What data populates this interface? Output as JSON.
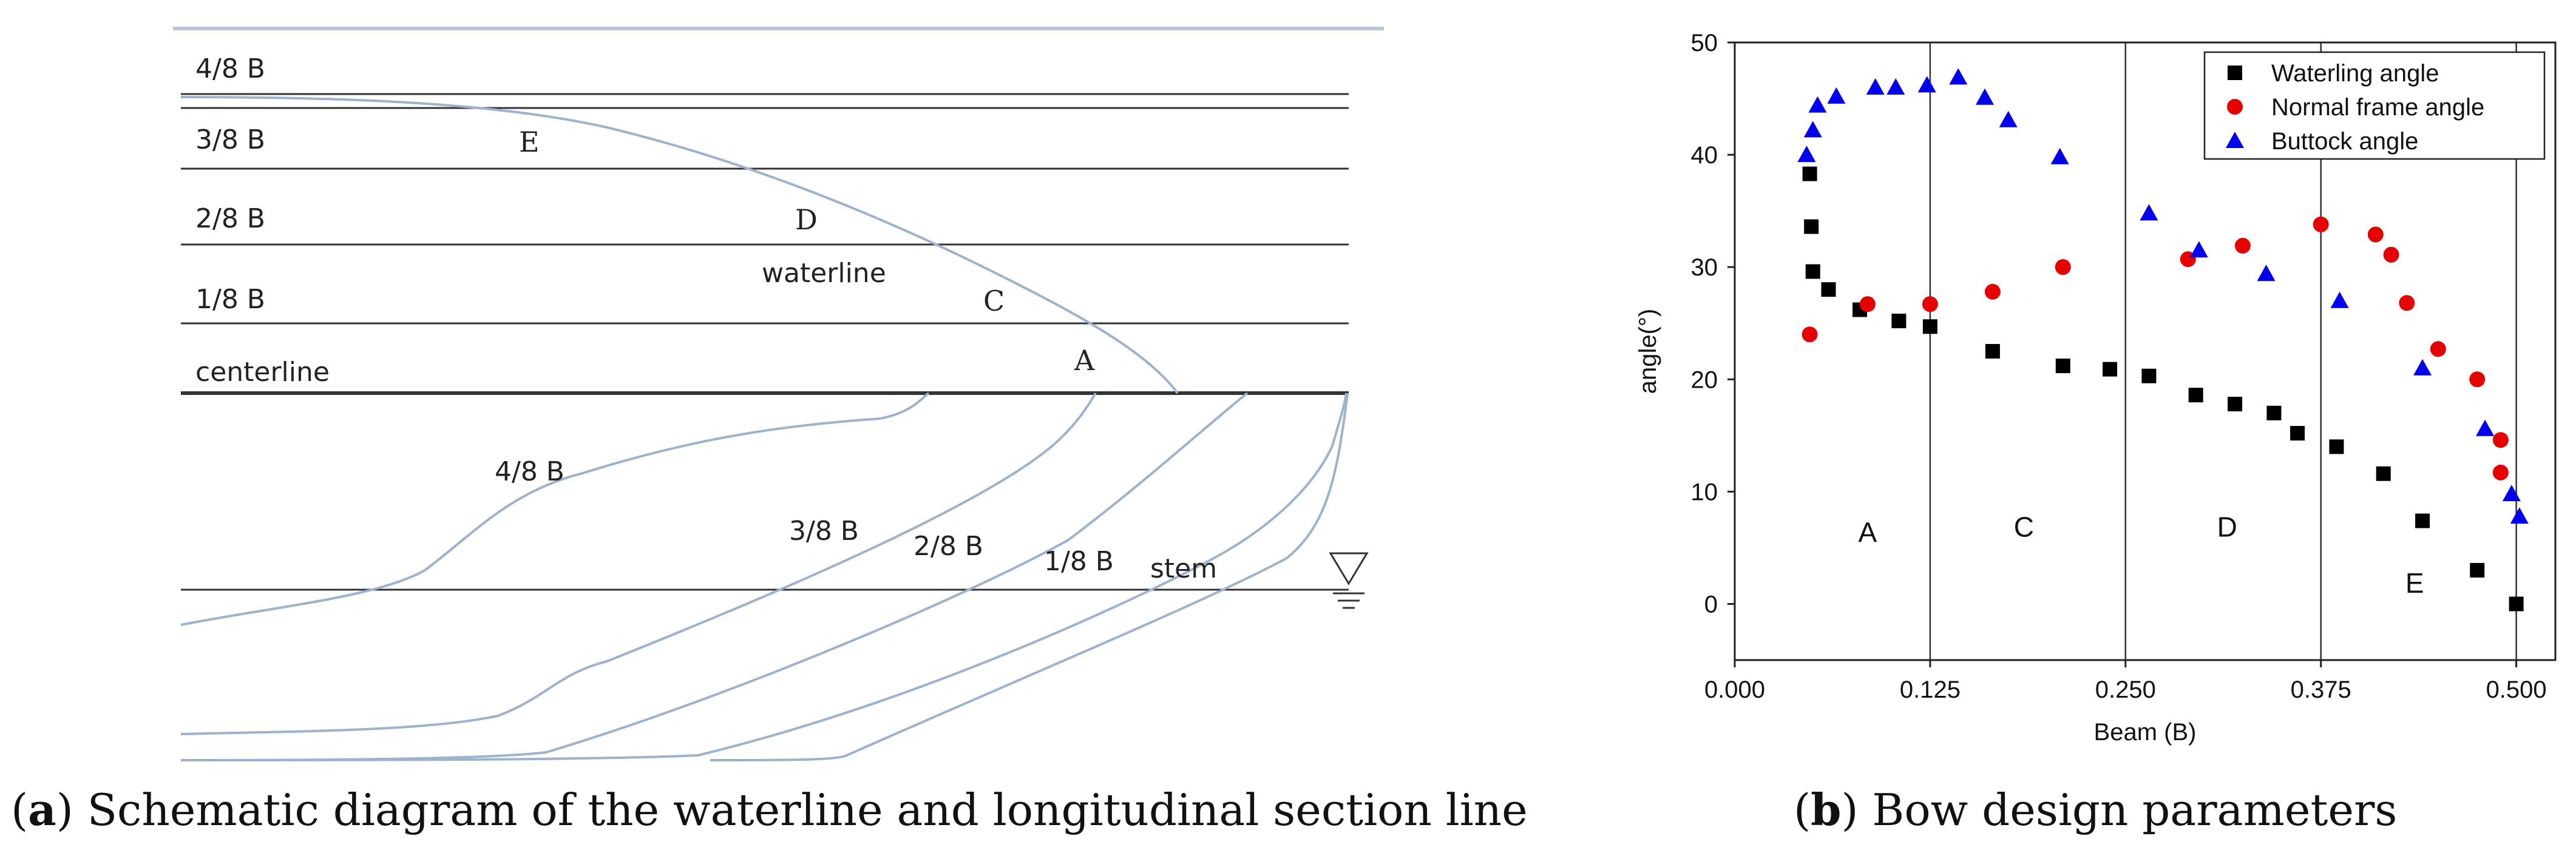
{
  "figure_a": {
    "band_labels": [
      "4/8 B",
      "3/8 B",
      "2/8 B",
      "1/8 B"
    ],
    "centerline_label": "centerline",
    "point_labels": {
      "E": "E",
      "D": "D",
      "C": "C",
      "A": "A"
    },
    "waterline_label": "waterline",
    "section_labels": [
      "4/8 B",
      "3/8 B",
      "2/8 B",
      "1/8 B"
    ],
    "stem_label": "stem",
    "caption_letter": "a",
    "caption_text": ") Schematic diagram of the waterline and longitudinal section line",
    "caption_open": "("
  },
  "figure_b": {
    "caption_letter": "b",
    "caption_text": ") Bow design parameters",
    "caption_open": "("
  },
  "chart_data": {
    "type": "scatter",
    "xlabel": "Beam (B)",
    "ylabel": "angle(°)",
    "xlim": [
      0.0,
      0.525
    ],
    "ylim": [
      -5,
      50
    ],
    "xticks": [
      0.0,
      0.125,
      0.25,
      0.375,
      0.5
    ],
    "xtick_labels": [
      "0.000",
      "0.125",
      "0.250",
      "0.375",
      "0.500"
    ],
    "yticks": [
      0,
      10,
      20,
      30,
      40,
      50
    ],
    "ytick_labels": [
      "0",
      "10",
      "20",
      "30",
      "40",
      "50"
    ],
    "vlines": [
      0.125,
      0.25,
      0.375,
      0.5
    ],
    "regions": [
      {
        "label": "A",
        "x": 0.085,
        "y": 5.5
      },
      {
        "label": "C",
        "x": 0.185,
        "y": 6
      },
      {
        "label": "D",
        "x": 0.315,
        "y": 6
      },
      {
        "label": "E",
        "x": 0.435,
        "y": 1
      }
    ],
    "legend_position": "top-right",
    "series": [
      {
        "name": "Waterling angle",
        "marker": "square",
        "color": "#000000",
        "x": [
          0.048,
          0.049,
          0.05,
          0.06,
          0.08,
          0.105,
          0.125,
          0.165,
          0.21,
          0.24,
          0.265,
          0.295,
          0.32,
          0.345,
          0.36,
          0.385,
          0.415,
          0.44,
          0.475,
          0.5
        ],
        "y": [
          38.3,
          33.6,
          29.6,
          28.0,
          26.2,
          25.2,
          24.7,
          22.5,
          21.2,
          20.9,
          20.3,
          18.6,
          17.8,
          17.0,
          15.2,
          14.0,
          11.6,
          7.4,
          3.0,
          0.0
        ]
      },
      {
        "name": "Normal frame angle",
        "marker": "circle",
        "color": "#e60000",
        "x": [
          0.048,
          0.085,
          0.125,
          0.165,
          0.21,
          0.29,
          0.325,
          0.375,
          0.41,
          0.42,
          0.43,
          0.45,
          0.475,
          0.49,
          0.49
        ],
        "y": [
          24.0,
          26.7,
          26.7,
          27.8,
          30.0,
          30.7,
          31.9,
          33.8,
          32.9,
          31.1,
          26.8,
          22.7,
          20.0,
          14.6,
          11.7
        ]
      },
      {
        "name": "Buttock angle",
        "marker": "triangle",
        "color": "#0000ee",
        "x": [
          0.046,
          0.05,
          0.053,
          0.065,
          0.09,
          0.103,
          0.123,
          0.143,
          0.16,
          0.175,
          0.208,
          0.265,
          0.297,
          0.34,
          0.387,
          0.44,
          0.48,
          0.497,
          0.502
        ],
        "y": [
          40.0,
          42.2,
          44.4,
          45.2,
          46.0,
          46.0,
          46.2,
          46.9,
          45.1,
          43.1,
          39.8,
          34.8,
          31.5,
          29.4,
          27.0,
          21.0,
          15.6,
          9.8,
          7.8
        ]
      }
    ]
  }
}
